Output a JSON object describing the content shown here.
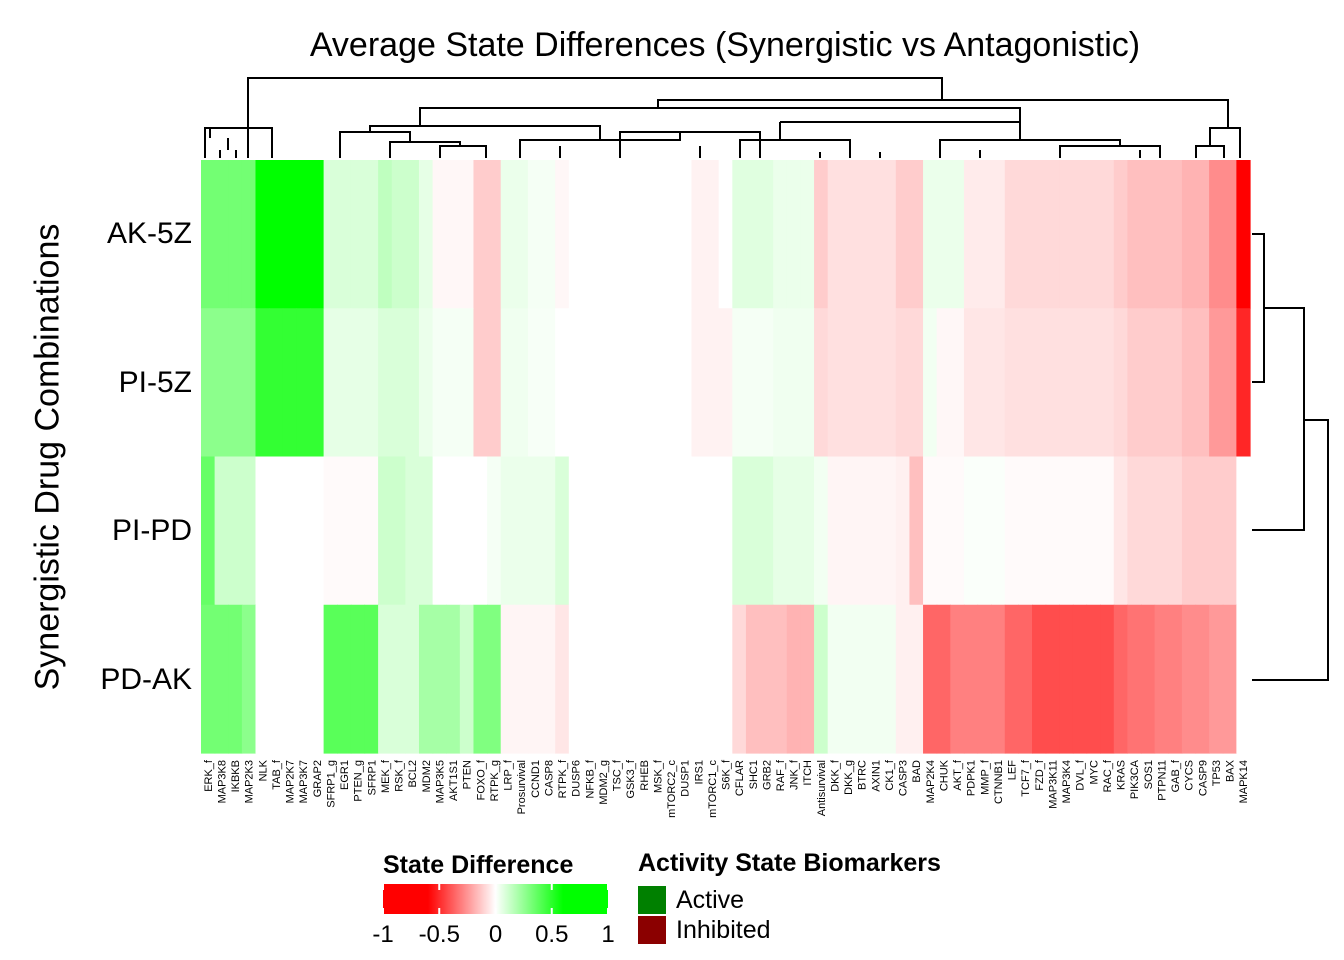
{
  "chart_data": {
    "type": "heatmap",
    "title": "Average State Differences (Synergistic vs Antagonistic)",
    "ylabel": "Synergistic Drug Combinations",
    "rows": [
      "AK-5Z",
      "PI-5Z",
      "PI-PD",
      "PD-AK"
    ],
    "columns": [
      "ERK_f",
      "MAP3K8",
      "IKBKB",
      "MAP2K3",
      "NLK",
      "TAB_f",
      "MAP2K7",
      "MAP3K7",
      "GRAP2",
      "SFRP1_g",
      "EGR1",
      "PTEN_g",
      "SFRP1",
      "MEK_f",
      "RSK_f",
      "BCL2",
      "MDM2",
      "MAP3K5",
      "AKT1S1",
      "PTEN",
      "FOXO_f",
      "RTPK_g",
      "LRP_f",
      "Prosurvival",
      "CCND1",
      "CASP8",
      "RTPK_f",
      "DUSP6",
      "NFKB_f",
      "MDM2_g",
      "TSC_f",
      "GSK3_f",
      "RHEB",
      "MSK_f",
      "mTORC2_c",
      "DUSP1",
      "IRS1",
      "mTORC1_c",
      "S6K_f",
      "CFLAR",
      "SHC1",
      "GRB2",
      "RAF_f",
      "JNK_f",
      "ITCH",
      "Antisurvival",
      "DKK_f",
      "DKK_g",
      "BTRC",
      "AXIN1",
      "CK1_f",
      "CASP3",
      "BAD",
      "MAP2K4",
      "CHUK",
      "AKT_f",
      "PDPK1",
      "MMP_f",
      "CTNNB1",
      "LEF",
      "TCF7_f",
      "FZD_f",
      "MAP3K11",
      "MAP3K4",
      "DVL_f",
      "MYC",
      "RAC_f",
      "KRAS",
      "PIK3CA",
      "SOS1",
      "PTPN11",
      "GAB_f",
      "CYCS",
      "CASP9",
      "TP53",
      "BAX",
      "MAPK14"
    ],
    "values": [
      [
        0.55,
        0.55,
        0.55,
        0.55,
        1.0,
        1.0,
        1.0,
        1.0,
        1.0,
        0.15,
        0.15,
        0.15,
        0.15,
        0.25,
        0.2,
        0.2,
        0.1,
        -0.03,
        -0.03,
        -0.03,
        -0.2,
        -0.2,
        0.08,
        0.08,
        0.04,
        0.04,
        -0.03,
        0,
        0,
        0,
        0,
        0,
        0,
        0,
        0,
        0,
        -0.05,
        -0.05,
        0,
        0.12,
        0.12,
        0.12,
        0.08,
        0.08,
        0.08,
        -0.2,
        -0.12,
        -0.12,
        -0.12,
        -0.12,
        -0.12,
        -0.2,
        -0.2,
        0.08,
        0.08,
        0.08,
        -0.08,
        -0.08,
        -0.08,
        -0.15,
        -0.15,
        -0.15,
        -0.15,
        -0.15,
        -0.15,
        -0.15,
        -0.15,
        -0.2,
        -0.25,
        -0.25,
        -0.25,
        -0.25,
        -0.3,
        -0.3,
        -0.45,
        -0.45,
        -1.0
      ],
      [
        0.45,
        0.45,
        0.45,
        0.45,
        0.8,
        0.8,
        0.8,
        0.8,
        0.8,
        0.1,
        0.1,
        0.1,
        0.1,
        0.15,
        0.15,
        0.15,
        0.08,
        0.04,
        0.04,
        0.04,
        -0.2,
        -0.2,
        0.06,
        0.06,
        0.03,
        0.03,
        0,
        0,
        0,
        0,
        0,
        0,
        0,
        0,
        0,
        0,
        -0.05,
        -0.05,
        -0.05,
        0.04,
        0.04,
        0.04,
        0.06,
        0.06,
        0.06,
        -0.15,
        -0.12,
        -0.12,
        -0.12,
        -0.12,
        -0.12,
        -0.15,
        -0.15,
        0.05,
        -0.03,
        -0.03,
        -0.1,
        -0.1,
        -0.1,
        -0.12,
        -0.12,
        -0.12,
        -0.12,
        -0.12,
        -0.12,
        -0.12,
        -0.12,
        -0.15,
        -0.2,
        -0.2,
        -0.2,
        -0.2,
        -0.25,
        -0.25,
        -0.4,
        -0.4,
        -0.85
      ],
      [
        0.6,
        0.2,
        0.2,
        0.2,
        0,
        0,
        0,
        0,
        0,
        -0.02,
        -0.02,
        -0.02,
        -0.02,
        0.2,
        0.2,
        0.15,
        0.15,
        0,
        0,
        0,
        0,
        0.04,
        0.08,
        0.08,
        0.08,
        0.08,
        0.15,
        0,
        0,
        0,
        0,
        0,
        0,
        0,
        0,
        0,
        0,
        0,
        0,
        0.15,
        0.15,
        0.15,
        0.1,
        0.1,
        0.1,
        0.05,
        -0.04,
        -0.04,
        -0.04,
        -0.04,
        -0.04,
        -0.06,
        -0.25,
        -0.02,
        -0.02,
        -0.02,
        0.02,
        0.02,
        0.02,
        -0.02,
        -0.02,
        -0.02,
        -0.02,
        -0.02,
        -0.02,
        -0.02,
        -0.02,
        -0.1,
        -0.15,
        -0.15,
        -0.15,
        -0.15,
        -0.2,
        -0.2,
        -0.2,
        -0.2,
        0
      ],
      [
        0.55,
        0.55,
        0.55,
        0.45,
        0,
        0,
        0,
        0,
        0,
        0.65,
        0.65,
        0.65,
        0.65,
        0.15,
        0.15,
        0.15,
        0.35,
        0.35,
        0.35,
        0.2,
        0.5,
        0.5,
        -0.04,
        -0.04,
        -0.04,
        -0.04,
        -0.1,
        0,
        0,
        0,
        0,
        0,
        0,
        0,
        0,
        0,
        0,
        0,
        0,
        -0.15,
        -0.25,
        -0.25,
        -0.25,
        -0.3,
        -0.3,
        0.2,
        0.05,
        0.05,
        0.05,
        0.05,
        0.05,
        -0.06,
        -0.06,
        -0.6,
        -0.6,
        -0.5,
        -0.5,
        -0.5,
        -0.5,
        -0.6,
        -0.6,
        -0.7,
        -0.7,
        -0.7,
        -0.7,
        -0.7,
        -0.7,
        -0.6,
        -0.55,
        -0.55,
        -0.5,
        -0.5,
        -0.45,
        -0.45,
        -0.4,
        -0.4,
        0
      ]
    ],
    "color_scale": {
      "min": -1,
      "mid": 0,
      "max": 1,
      "low_color": "#ff0000",
      "mid_color": "#ffffff",
      "high_color": "#00ff00"
    },
    "column_annotation": {
      "name": "Activity State Biomarkers",
      "values": {}
    },
    "legend_state": {
      "title": "State Difference",
      "ticks": [
        "-1",
        "-0.5",
        "0",
        "0.5",
        "1"
      ],
      "tick_values": [
        -1,
        -0.5,
        0,
        0.5,
        1
      ]
    },
    "legend_biomarkers": {
      "title": "Activity State Biomarkers",
      "items": [
        {
          "label": "Active",
          "color": "#008000"
        },
        {
          "label": "Inhibited",
          "color": "#8b0000"
        }
      ]
    }
  }
}
